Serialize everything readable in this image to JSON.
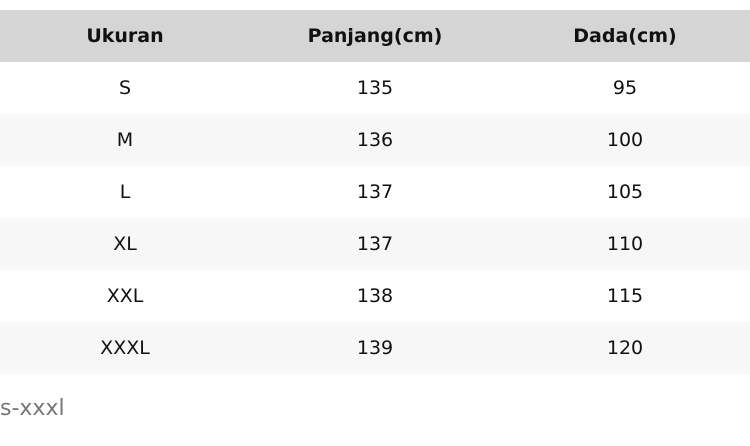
{
  "table": {
    "headers": [
      "Ukuran",
      "Panjang(cm)",
      "Dada(cm)"
    ],
    "rows": [
      [
        "S",
        "135",
        "95"
      ],
      [
        "M",
        "136",
        "100"
      ],
      [
        "L",
        "137",
        "105"
      ],
      [
        "XL",
        "137",
        "110"
      ],
      [
        "XXL",
        "138",
        "115"
      ],
      [
        "XXXL",
        "139",
        "120"
      ]
    ]
  },
  "note": "s-xxxl"
}
